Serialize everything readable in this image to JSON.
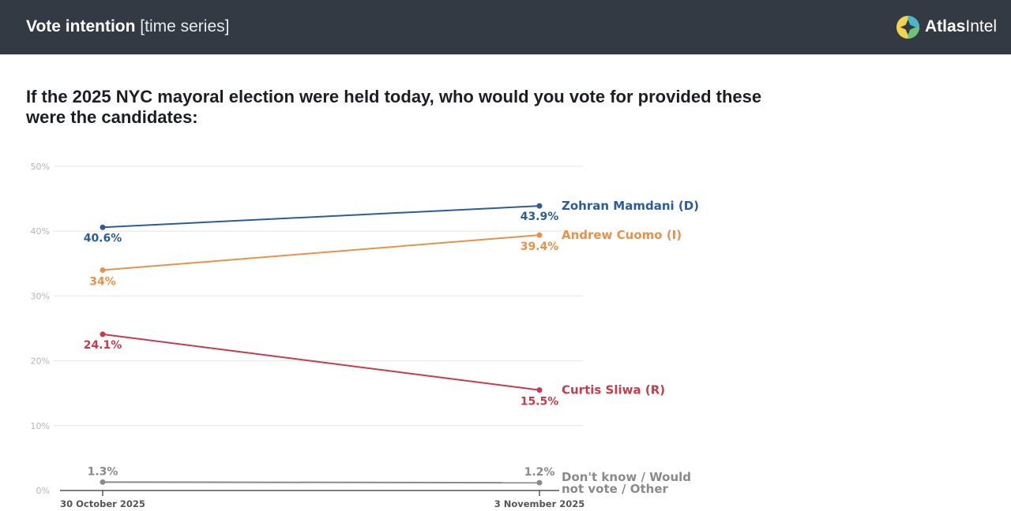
{
  "header": {
    "title_bold": "Vote intention",
    "title_light": "[time series]",
    "brand_bold": "Atlas",
    "brand_light": "Intel",
    "logo_icon": "atlasintel-logo-icon"
  },
  "question": "If the 2025 NYC mayoral election were held today, who would you vote for provided these were the candidates:",
  "chart_data": {
    "type": "line",
    "title": "If the 2025 NYC mayoral election were held today, who would you vote for provided these were the candidates:",
    "x": [
      "30 October 2025",
      "3 November 2025"
    ],
    "ylim": [
      0,
      50
    ],
    "yticks": [
      0,
      10,
      20,
      30,
      40,
      50
    ],
    "ytick_labels": [
      "0%",
      "10%",
      "20%",
      "30%",
      "40%",
      "50%"
    ],
    "grid": true,
    "xlabel": "",
    "ylabel": "",
    "series": [
      {
        "name": "Zohran Mamdani (D)",
        "values": [
          40.6,
          43.9
        ],
        "labels": [
          "40.6%",
          "43.9%"
        ],
        "color": "#2a5d9a"
      },
      {
        "name": "Andrew Cuomo (I)",
        "values": [
          34,
          39.4
        ],
        "labels": [
          "34%",
          "39.4%"
        ],
        "color": "#ea9149"
      },
      {
        "name": "Curtis Sliwa (R)",
        "values": [
          24.1,
          15.5
        ],
        "labels": [
          "24.1%",
          "15.5%"
        ],
        "color": "#c73b4b"
      },
      {
        "name": "Don't know / Would not vote / Other",
        "values": [
          1.3,
          1.2
        ],
        "labels": [
          "1.3%",
          "1.2%"
        ],
        "color": "#8a8a8a"
      }
    ]
  }
}
